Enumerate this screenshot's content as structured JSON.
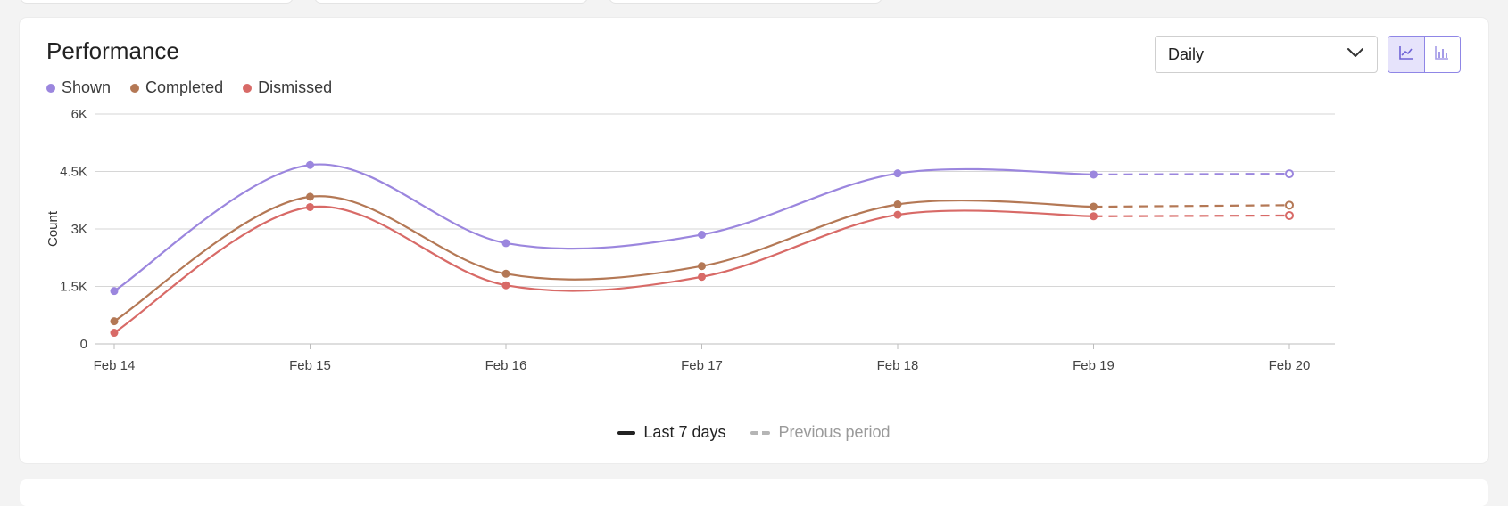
{
  "card": {
    "title": "Performance",
    "granularity": {
      "selected": "Daily"
    },
    "view_toggle": {
      "active": "line",
      "icons": [
        "line-chart-icon",
        "bar-chart-icon"
      ]
    }
  },
  "legend": [
    {
      "label": "Shown",
      "color": "#9b86de"
    },
    {
      "label": "Completed",
      "color": "#b47855"
    },
    {
      "label": "Dismissed",
      "color": "#d86a67"
    }
  ],
  "period_legend": {
    "current": "Last 7 days",
    "previous": "Previous period"
  },
  "chart_data": {
    "type": "line",
    "x": [
      "Feb 14",
      "Feb 15",
      "Feb 16",
      "Feb 17",
      "Feb 18",
      "Feb 19",
      "Feb 20"
    ],
    "ylabel": "Count",
    "ylim": [
      0,
      6000
    ],
    "yticks": [
      0,
      1500,
      3000,
      4500,
      6000
    ],
    "ytick_labels": [
      "0",
      "1.5K",
      "3K",
      "4.5K",
      "6K"
    ],
    "grid": true,
    "series": [
      {
        "name": "Shown",
        "color": "#9b86de",
        "values": [
          1380,
          4670,
          2630,
          2850,
          4450,
          4420,
          4440
        ],
        "dashed_from_index": 5
      },
      {
        "name": "Completed",
        "color": "#b47855",
        "values": [
          590,
          3840,
          1830,
          2030,
          3640,
          3580,
          3620
        ],
        "dashed_from_index": 5
      },
      {
        "name": "Dismissed",
        "color": "#d86a67",
        "values": [
          290,
          3570,
          1530,
          1750,
          3370,
          3330,
          3350
        ],
        "dashed_from_index": 5
      }
    ]
  }
}
